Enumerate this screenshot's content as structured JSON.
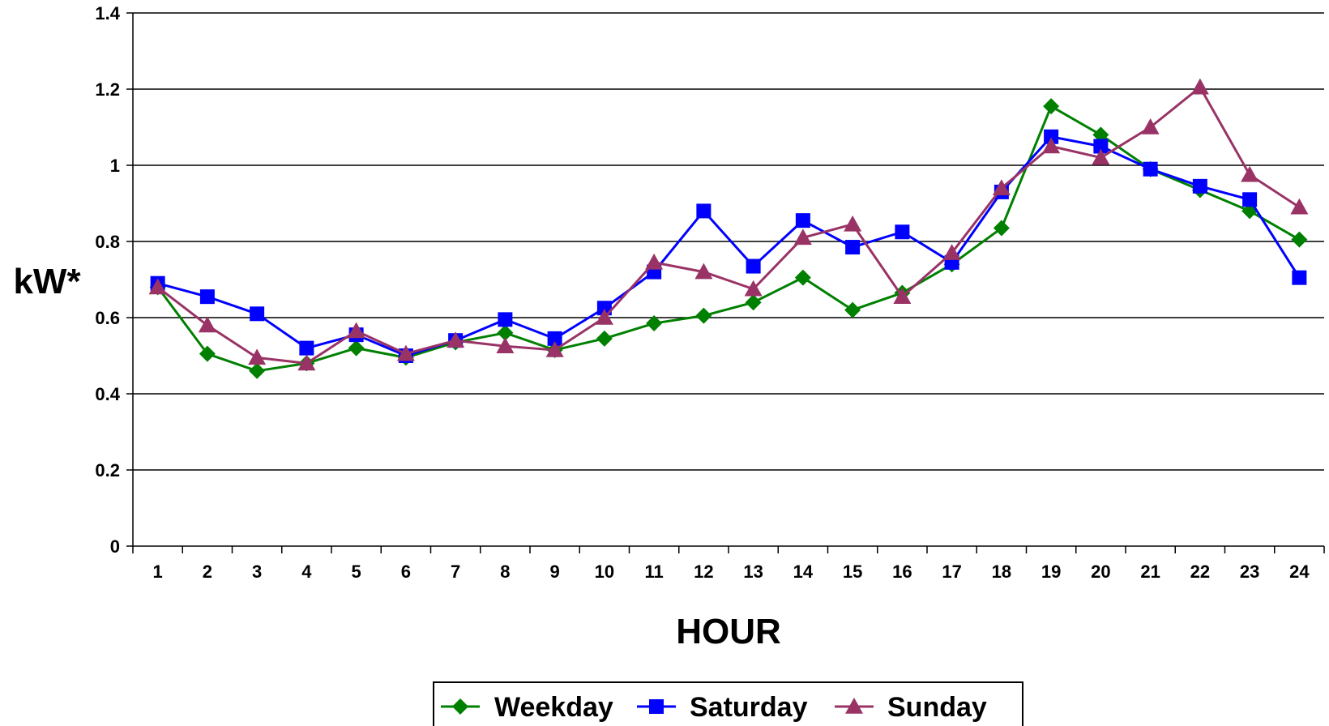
{
  "chart_data": {
    "type": "line",
    "title": "",
    "xlabel": "HOUR",
    "ylabel": "kW*",
    "categories": [
      "1",
      "2",
      "3",
      "4",
      "5",
      "6",
      "7",
      "8",
      "9",
      "10",
      "11",
      "12",
      "13",
      "14",
      "15",
      "16",
      "17",
      "18",
      "19",
      "20",
      "21",
      "22",
      "23",
      "24"
    ],
    "ylim": [
      0,
      1.4
    ],
    "yticks": [
      "0",
      "0.2",
      "0.4",
      "0.6",
      "0.8",
      "1",
      "1.2",
      "1.4"
    ],
    "ytick_values": [
      0,
      0.2,
      0.4,
      0.6,
      0.8,
      1.0,
      1.2,
      1.4
    ],
    "grid": "horizontal",
    "legend_position": "bottom",
    "series": [
      {
        "name": "Weekday",
        "color": "#008000",
        "marker": "diamond",
        "values": [
          0.68,
          0.505,
          0.46,
          0.48,
          0.52,
          0.495,
          0.535,
          0.56,
          0.515,
          0.545,
          0.585,
          0.605,
          0.64,
          0.705,
          0.62,
          0.665,
          0.74,
          0.835,
          1.155,
          1.08,
          0.99,
          0.935,
          0.88,
          0.805
        ]
      },
      {
        "name": "Saturday",
        "color": "#0000FF",
        "marker": "square",
        "values": [
          0.69,
          0.655,
          0.61,
          0.52,
          0.555,
          0.5,
          0.54,
          0.595,
          0.545,
          0.625,
          0.72,
          0.88,
          0.735,
          0.855,
          0.785,
          0.825,
          0.745,
          0.93,
          1.075,
          1.05,
          0.99,
          0.945,
          0.91,
          0.705
        ]
      },
      {
        "name": "Sunday",
        "color": "#993366",
        "marker": "triangle",
        "values": [
          0.68,
          0.58,
          0.495,
          0.48,
          0.565,
          0.505,
          0.54,
          0.525,
          0.515,
          0.6,
          0.745,
          0.72,
          0.675,
          0.81,
          0.845,
          0.655,
          0.77,
          0.94,
          1.05,
          1.02,
          1.1,
          1.205,
          0.975,
          0.89
        ]
      }
    ]
  }
}
